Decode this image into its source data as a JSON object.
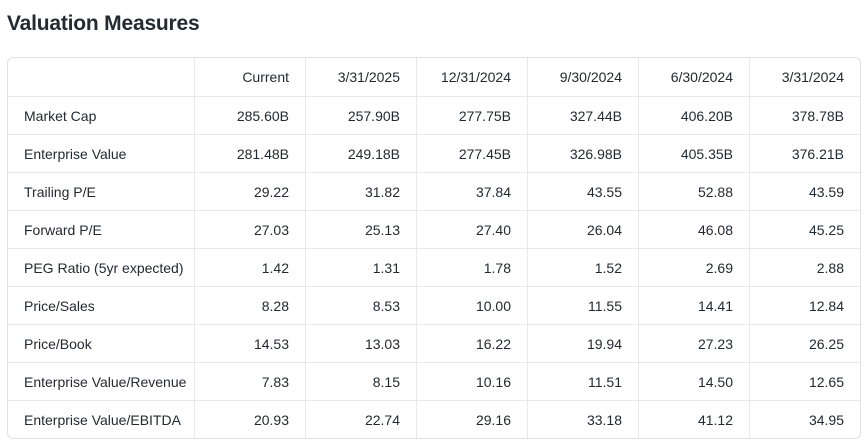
{
  "page_title": "Valuation Measures",
  "colors": {
    "text": "#232a31",
    "border_outer": "#e2e2e6",
    "border_inner": "#e8e8ec",
    "background": "#ffffff"
  },
  "table": {
    "columns": [
      "",
      "Current",
      "3/31/2025",
      "12/31/2024",
      "9/30/2024",
      "6/30/2024",
      "3/31/2024"
    ],
    "rows": [
      {
        "label": "Market Cap",
        "values": [
          "285.60B",
          "257.90B",
          "277.75B",
          "327.44B",
          "406.20B",
          "378.78B"
        ]
      },
      {
        "label": "Enterprise Value",
        "values": [
          "281.48B",
          "249.18B",
          "277.45B",
          "326.98B",
          "405.35B",
          "376.21B"
        ]
      },
      {
        "label": "Trailing P/E",
        "values": [
          "29.22",
          "31.82",
          "37.84",
          "43.55",
          "52.88",
          "43.59"
        ]
      },
      {
        "label": "Forward P/E",
        "values": [
          "27.03",
          "25.13",
          "27.40",
          "26.04",
          "46.08",
          "45.25"
        ]
      },
      {
        "label": "PEG Ratio (5yr expected)",
        "values": [
          "1.42",
          "1.31",
          "1.78",
          "1.52",
          "2.69",
          "2.88"
        ]
      },
      {
        "label": "Price/Sales",
        "values": [
          "8.28",
          "8.53",
          "10.00",
          "11.55",
          "14.41",
          "12.84"
        ]
      },
      {
        "label": "Price/Book",
        "values": [
          "14.53",
          "13.03",
          "16.22",
          "19.94",
          "27.23",
          "26.25"
        ]
      },
      {
        "label": "Enterprise Value/Revenue",
        "values": [
          "7.83",
          "8.15",
          "10.16",
          "11.51",
          "14.50",
          "12.65"
        ]
      },
      {
        "label": "Enterprise Value/EBITDA",
        "values": [
          "20.93",
          "22.74",
          "29.16",
          "33.18",
          "41.12",
          "34.95"
        ]
      }
    ]
  }
}
